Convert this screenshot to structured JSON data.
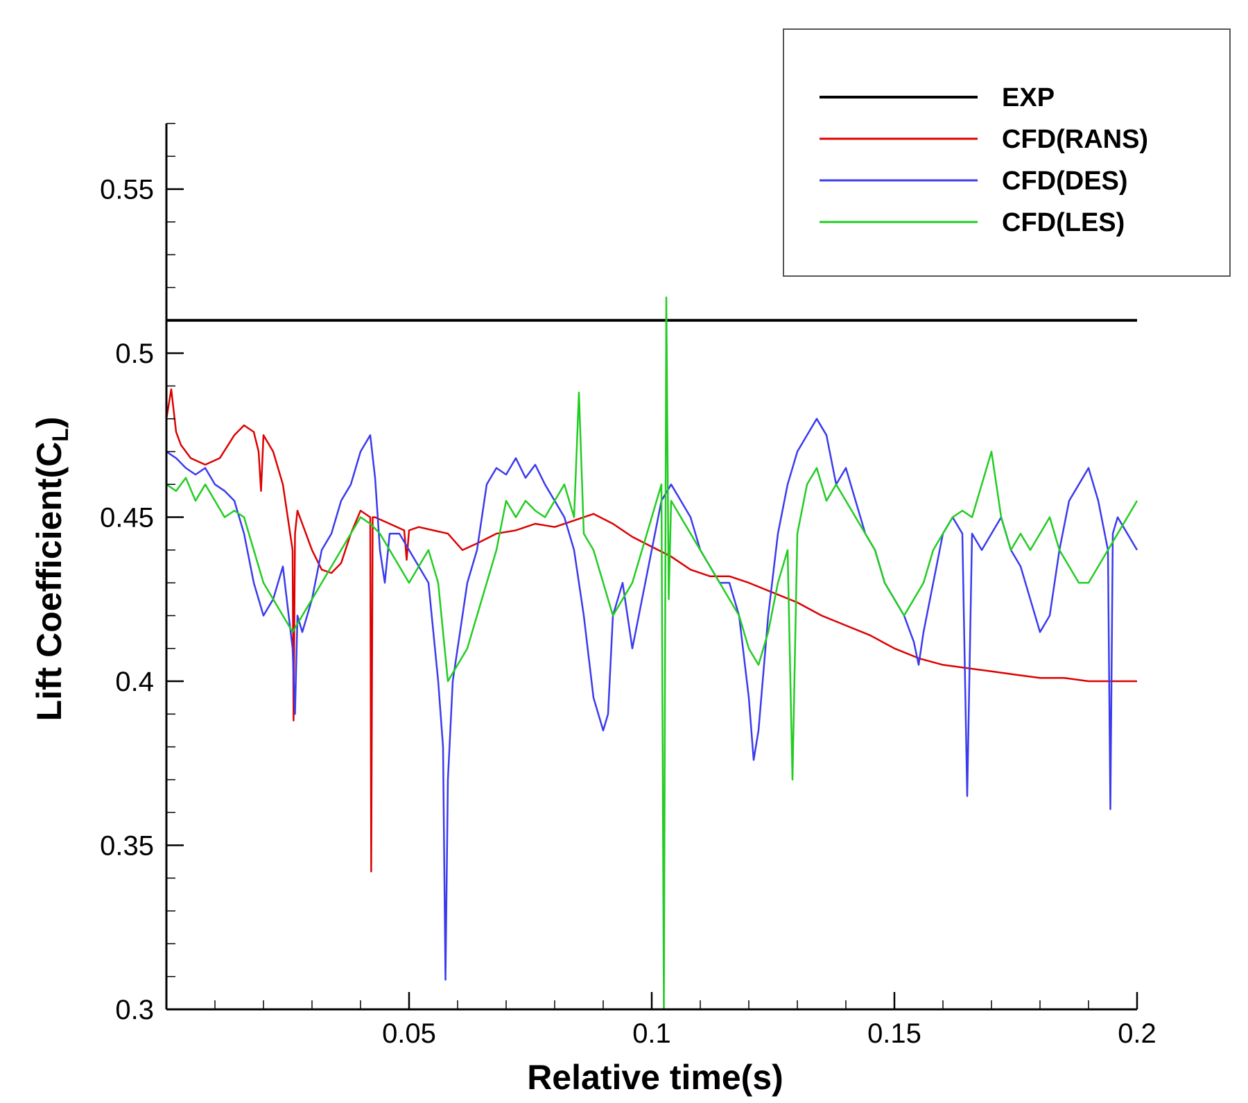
{
  "chart_data": {
    "type": "line",
    "title": "",
    "xlabel": "Relative time(s)",
    "ylabel": {
      "main": "Lift Coefficient(C",
      "sub": "L",
      "close": ")"
    },
    "xlim": [
      0,
      0.2
    ],
    "ylim": [
      0.3,
      0.57
    ],
    "x_ticks": [
      {
        "value": 0.05,
        "label": "0.05"
      },
      {
        "value": 0.1,
        "label": "0.1"
      },
      {
        "value": 0.15,
        "label": "0.15"
      },
      {
        "value": 0.2,
        "label": "0.2"
      }
    ],
    "y_ticks": [
      {
        "value": 0.3,
        "label": "0.3"
      },
      {
        "value": 0.35,
        "label": "0.35"
      },
      {
        "value": 0.4,
        "label": "0.4"
      },
      {
        "value": 0.45,
        "label": "0.45"
      },
      {
        "value": 0.5,
        "label": "0.5"
      },
      {
        "value": 0.55,
        "label": "0.55"
      }
    ],
    "grid": false,
    "legend_position": "top-right",
    "series": [
      {
        "name": "EXP",
        "color": "#000000",
        "x": [
          0,
          0.2
        ],
        "y": [
          0.51,
          0.51
        ]
      },
      {
        "name": "CFD(RANS)",
        "color": "#dd0000",
        "x": [
          0,
          0.001,
          0.002,
          0.003,
          0.005,
          0.008,
          0.011,
          0.014,
          0.016,
          0.018,
          0.019,
          0.0195,
          0.02,
          0.022,
          0.024,
          0.025,
          0.026,
          0.0262,
          0.0265,
          0.027,
          0.028,
          0.03,
          0.032,
          0.034,
          0.036,
          0.038,
          0.04,
          0.042,
          0.0422,
          0.0425,
          0.043,
          0.046,
          0.049,
          0.0495,
          0.05,
          0.052,
          0.055,
          0.058,
          0.061,
          0.064,
          0.068,
          0.072,
          0.076,
          0.08,
          0.084,
          0.088,
          0.092,
          0.096,
          0.1,
          0.104,
          0.108,
          0.112,
          0.116,
          0.12,
          0.125,
          0.13,
          0.135,
          0.14,
          0.145,
          0.15,
          0.155,
          0.16,
          0.165,
          0.17,
          0.175,
          0.18,
          0.185,
          0.19,
          0.195,
          0.2
        ],
        "y": [
          0.48,
          0.489,
          0.476,
          0.472,
          0.468,
          0.466,
          0.468,
          0.475,
          0.478,
          0.476,
          0.47,
          0.458,
          0.475,
          0.47,
          0.46,
          0.45,
          0.44,
          0.388,
          0.445,
          0.452,
          0.448,
          0.44,
          0.434,
          0.433,
          0.436,
          0.445,
          0.452,
          0.45,
          0.342,
          0.45,
          0.45,
          0.448,
          0.446,
          0.437,
          0.446,
          0.447,
          0.446,
          0.445,
          0.44,
          0.442,
          0.445,
          0.446,
          0.448,
          0.447,
          0.449,
          0.451,
          0.448,
          0.444,
          0.441,
          0.438,
          0.434,
          0.432,
          0.432,
          0.43,
          0.427,
          0.424,
          0.42,
          0.417,
          0.414,
          0.41,
          0.407,
          0.405,
          0.404,
          0.403,
          0.402,
          0.401,
          0.401,
          0.4,
          0.4,
          0.4
        ]
      },
      {
        "name": "CFD(DES)",
        "color": "#3a3aee",
        "x": [
          0,
          0.002,
          0.004,
          0.006,
          0.008,
          0.01,
          0.012,
          0.014,
          0.016,
          0.018,
          0.02,
          0.022,
          0.024,
          0.026,
          0.0265,
          0.027,
          0.028,
          0.03,
          0.032,
          0.034,
          0.036,
          0.038,
          0.04,
          0.042,
          0.043,
          0.044,
          0.045,
          0.046,
          0.048,
          0.05,
          0.052,
          0.054,
          0.056,
          0.057,
          0.0575,
          0.058,
          0.059,
          0.06,
          0.062,
          0.064,
          0.066,
          0.068,
          0.07,
          0.072,
          0.074,
          0.076,
          0.078,
          0.08,
          0.082,
          0.084,
          0.086,
          0.088,
          0.09,
          0.091,
          0.092,
          0.094,
          0.096,
          0.098,
          0.1,
          0.102,
          0.104,
          0.106,
          0.108,
          0.11,
          0.112,
          0.114,
          0.116,
          0.118,
          0.12,
          0.121,
          0.122,
          0.124,
          0.126,
          0.128,
          0.13,
          0.132,
          0.134,
          0.136,
          0.138,
          0.14,
          0.142,
          0.144,
          0.146,
          0.148,
          0.15,
          0.152,
          0.154,
          0.155,
          0.156,
          0.158,
          0.16,
          0.162,
          0.164,
          0.165,
          0.166,
          0.168,
          0.17,
          0.172,
          0.174,
          0.176,
          0.178,
          0.18,
          0.182,
          0.184,
          0.186,
          0.188,
          0.19,
          0.192,
          0.194,
          0.1945,
          0.195,
          0.196,
          0.198,
          0.2
        ],
        "y": [
          0.47,
          0.468,
          0.465,
          0.463,
          0.465,
          0.46,
          0.458,
          0.455,
          0.445,
          0.43,
          0.42,
          0.425,
          0.435,
          0.41,
          0.39,
          0.42,
          0.415,
          0.425,
          0.44,
          0.445,
          0.455,
          0.46,
          0.47,
          0.475,
          0.462,
          0.44,
          0.43,
          0.445,
          0.445,
          0.44,
          0.435,
          0.43,
          0.4,
          0.38,
          0.309,
          0.37,
          0.4,
          0.41,
          0.43,
          0.44,
          0.46,
          0.465,
          0.463,
          0.468,
          0.462,
          0.466,
          0.46,
          0.455,
          0.45,
          0.44,
          0.42,
          0.395,
          0.385,
          0.39,
          0.42,
          0.43,
          0.41,
          0.425,
          0.44,
          0.455,
          0.46,
          0.455,
          0.45,
          0.44,
          0.435,
          0.43,
          0.43,
          0.42,
          0.395,
          0.376,
          0.385,
          0.42,
          0.445,
          0.46,
          0.47,
          0.475,
          0.48,
          0.475,
          0.46,
          0.465,
          0.455,
          0.445,
          0.44,
          0.43,
          0.425,
          0.42,
          0.412,
          0.405,
          0.415,
          0.43,
          0.445,
          0.45,
          0.445,
          0.365,
          0.445,
          0.44,
          0.445,
          0.45,
          0.44,
          0.435,
          0.425,
          0.415,
          0.42,
          0.44,
          0.455,
          0.46,
          0.465,
          0.455,
          0.44,
          0.361,
          0.445,
          0.45,
          0.445,
          0.44
        ]
      },
      {
        "name": "CFD(LES)",
        "color": "#22cc22",
        "x": [
          0,
          0.002,
          0.004,
          0.006,
          0.008,
          0.01,
          0.012,
          0.014,
          0.016,
          0.018,
          0.02,
          0.022,
          0.024,
          0.026,
          0.028,
          0.03,
          0.032,
          0.034,
          0.036,
          0.038,
          0.04,
          0.042,
          0.044,
          0.046,
          0.048,
          0.05,
          0.052,
          0.054,
          0.056,
          0.058,
          0.06,
          0.062,
          0.064,
          0.066,
          0.068,
          0.07,
          0.072,
          0.074,
          0.076,
          0.078,
          0.08,
          0.082,
          0.084,
          0.085,
          0.086,
          0.088,
          0.09,
          0.092,
          0.094,
          0.096,
          0.098,
          0.1,
          0.102,
          0.1025,
          0.103,
          0.1035,
          0.104,
          0.106,
          0.108,
          0.11,
          0.112,
          0.114,
          0.116,
          0.118,
          0.12,
          0.122,
          0.124,
          0.126,
          0.128,
          0.129,
          0.13,
          0.132,
          0.134,
          0.136,
          0.138,
          0.14,
          0.142,
          0.144,
          0.146,
          0.148,
          0.15,
          0.152,
          0.154,
          0.156,
          0.158,
          0.16,
          0.162,
          0.164,
          0.166,
          0.168,
          0.17,
          0.172,
          0.174,
          0.176,
          0.178,
          0.18,
          0.182,
          0.184,
          0.186,
          0.188,
          0.19,
          0.192,
          0.194,
          0.196,
          0.198,
          0.2
        ],
        "y": [
          0.46,
          0.458,
          0.462,
          0.455,
          0.46,
          0.455,
          0.45,
          0.452,
          0.45,
          0.44,
          0.43,
          0.425,
          0.42,
          0.415,
          0.42,
          0.425,
          0.43,
          0.435,
          0.44,
          0.445,
          0.45,
          0.448,
          0.445,
          0.44,
          0.435,
          0.43,
          0.435,
          0.44,
          0.43,
          0.4,
          0.405,
          0.41,
          0.42,
          0.43,
          0.44,
          0.455,
          0.45,
          0.455,
          0.452,
          0.45,
          0.455,
          0.46,
          0.45,
          0.488,
          0.445,
          0.44,
          0.43,
          0.42,
          0.425,
          0.43,
          0.44,
          0.45,
          0.46,
          0.3,
          0.517,
          0.425,
          0.455,
          0.45,
          0.445,
          0.44,
          0.435,
          0.43,
          0.425,
          0.42,
          0.41,
          0.405,
          0.415,
          0.43,
          0.44,
          0.37,
          0.445,
          0.46,
          0.465,
          0.455,
          0.46,
          0.455,
          0.45,
          0.445,
          0.44,
          0.43,
          0.425,
          0.42,
          0.425,
          0.43,
          0.44,
          0.445,
          0.45,
          0.452,
          0.45,
          0.46,
          0.47,
          0.45,
          0.44,
          0.445,
          0.44,
          0.445,
          0.45,
          0.44,
          0.435,
          0.43,
          0.43,
          0.435,
          0.44,
          0.445,
          0.45,
          0.455
        ]
      }
    ]
  }
}
